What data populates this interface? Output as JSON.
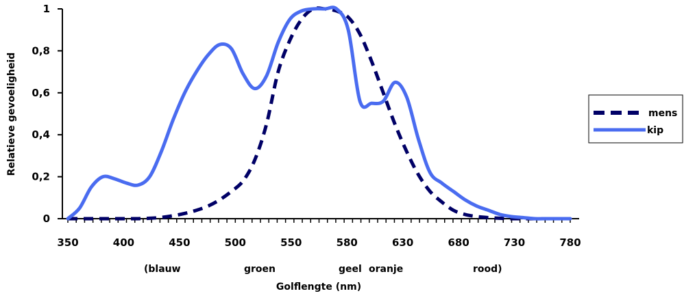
{
  "chart_data": {
    "type": "line",
    "xlabel": "Golflengte (nm)",
    "ylabel": "Relatieve gevoeligheid",
    "x_tick_labels": [
      "350",
      "400",
      "450",
      "500",
      "550",
      "580",
      "630",
      "680",
      "730",
      "780"
    ],
    "y_tick_labels": [
      "0",
      "0,2",
      "0,4",
      "0,6",
      "0,8",
      "1"
    ],
    "ylim": [
      0,
      1
    ],
    "color_labels": [
      "(blauw",
      "groen",
      "geel",
      "oranje",
      "rood)"
    ],
    "legend_position": "right",
    "grid": false,
    "series": [
      {
        "name": "mens",
        "style": "dashed",
        "color": "#000066",
        "x": [
          350,
          360,
          370,
          380,
          390,
          400,
          410,
          420,
          430,
          440,
          450,
          460,
          470,
          480,
          490,
          500,
          510,
          520,
          530,
          540,
          550,
          560,
          570,
          580,
          590,
          600,
          610,
          620,
          630,
          640,
          650,
          660,
          670,
          680,
          690,
          700,
          710,
          720,
          730,
          740,
          750,
          760,
          770,
          780
        ],
        "y": [
          0,
          0,
          0,
          0,
          0,
          0,
          0,
          0.002,
          0.006,
          0.014,
          0.025,
          0.04,
          0.06,
          0.09,
          0.13,
          0.18,
          0.28,
          0.45,
          0.7,
          0.85,
          0.95,
          1.0,
          1.0,
          0.99,
          0.96,
          0.88,
          0.75,
          0.6,
          0.45,
          0.32,
          0.21,
          0.13,
          0.08,
          0.04,
          0.02,
          0.01,
          0.005,
          0.002,
          0,
          0,
          0,
          0,
          0,
          0
        ]
      },
      {
        "name": "kip",
        "style": "solid",
        "color": "#4a6cf0",
        "x": [
          350,
          360,
          370,
          380,
          390,
          400,
          410,
          420,
          430,
          440,
          450,
          460,
          470,
          480,
          490,
          500,
          510,
          520,
          530,
          540,
          550,
          560,
          570,
          580,
          590,
          600,
          610,
          620,
          630,
          640,
          650,
          660,
          670,
          680,
          690,
          700,
          710,
          720,
          730,
          740,
          750,
          760,
          770,
          780
        ],
        "y": [
          0,
          0.05,
          0.15,
          0.2,
          0.19,
          0.17,
          0.16,
          0.2,
          0.32,
          0.47,
          0.6,
          0.7,
          0.78,
          0.83,
          0.81,
          0.69,
          0.62,
          0.68,
          0.84,
          0.95,
          0.99,
          1.0,
          1.0,
          1.0,
          0.9,
          0.56,
          0.55,
          0.56,
          0.65,
          0.58,
          0.38,
          0.22,
          0.17,
          0.13,
          0.09,
          0.06,
          0.04,
          0.02,
          0.01,
          0.005,
          0,
          0,
          0,
          0
        ]
      }
    ]
  }
}
